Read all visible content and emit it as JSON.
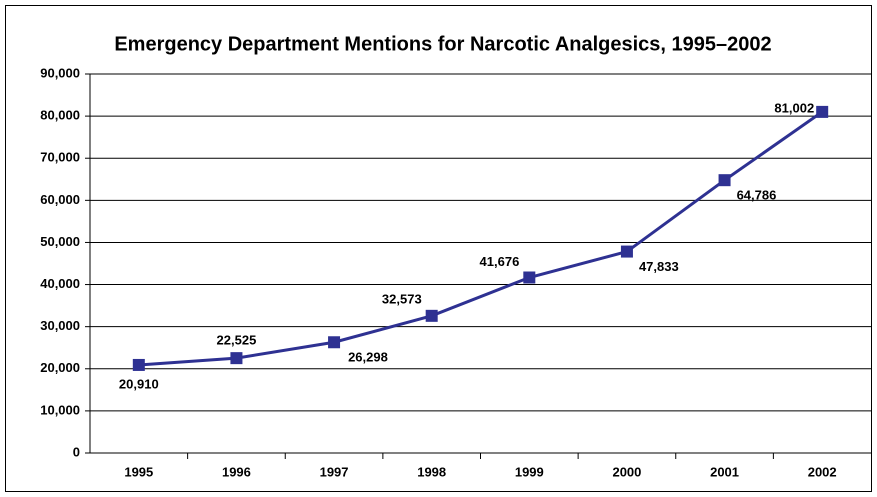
{
  "chart_data": {
    "type": "line",
    "title": "Emergency Department Mentions for Narcotic Analgesics, 1995–2002",
    "categories": [
      "1995",
      "1996",
      "1997",
      "1998",
      "1999",
      "2000",
      "2001",
      "2002"
    ],
    "series": [
      {
        "name": "Emergency Department Mentions",
        "color": "#2e3192",
        "values": [
          20910,
          22525,
          26298,
          32573,
          41676,
          47833,
          64786,
          81002
        ],
        "value_labels": [
          "20,910",
          "22,525",
          "26,298",
          "32,573",
          "41,676",
          "47,833",
          "64,786",
          "81,002"
        ]
      }
    ],
    "ylim": [
      0,
      90000
    ],
    "yticks": [
      0,
      {
        "value": 10000,
        "label": "10,000"
      },
      {
        "value": 20000,
        "label": "20,000"
      },
      {
        "value": 30000,
        "label": "30,000"
      },
      {
        "value": 40000,
        "label": "40,000"
      },
      {
        "value": 50000,
        "label": "50,000"
      },
      {
        "value": 60000,
        "label": "60,000"
      },
      {
        "value": 70000,
        "label": "70,000"
      },
      {
        "value": 80000,
        "label": "80,000"
      },
      {
        "value": 90000,
        "label": "90,000"
      }
    ],
    "grid": true
  }
}
